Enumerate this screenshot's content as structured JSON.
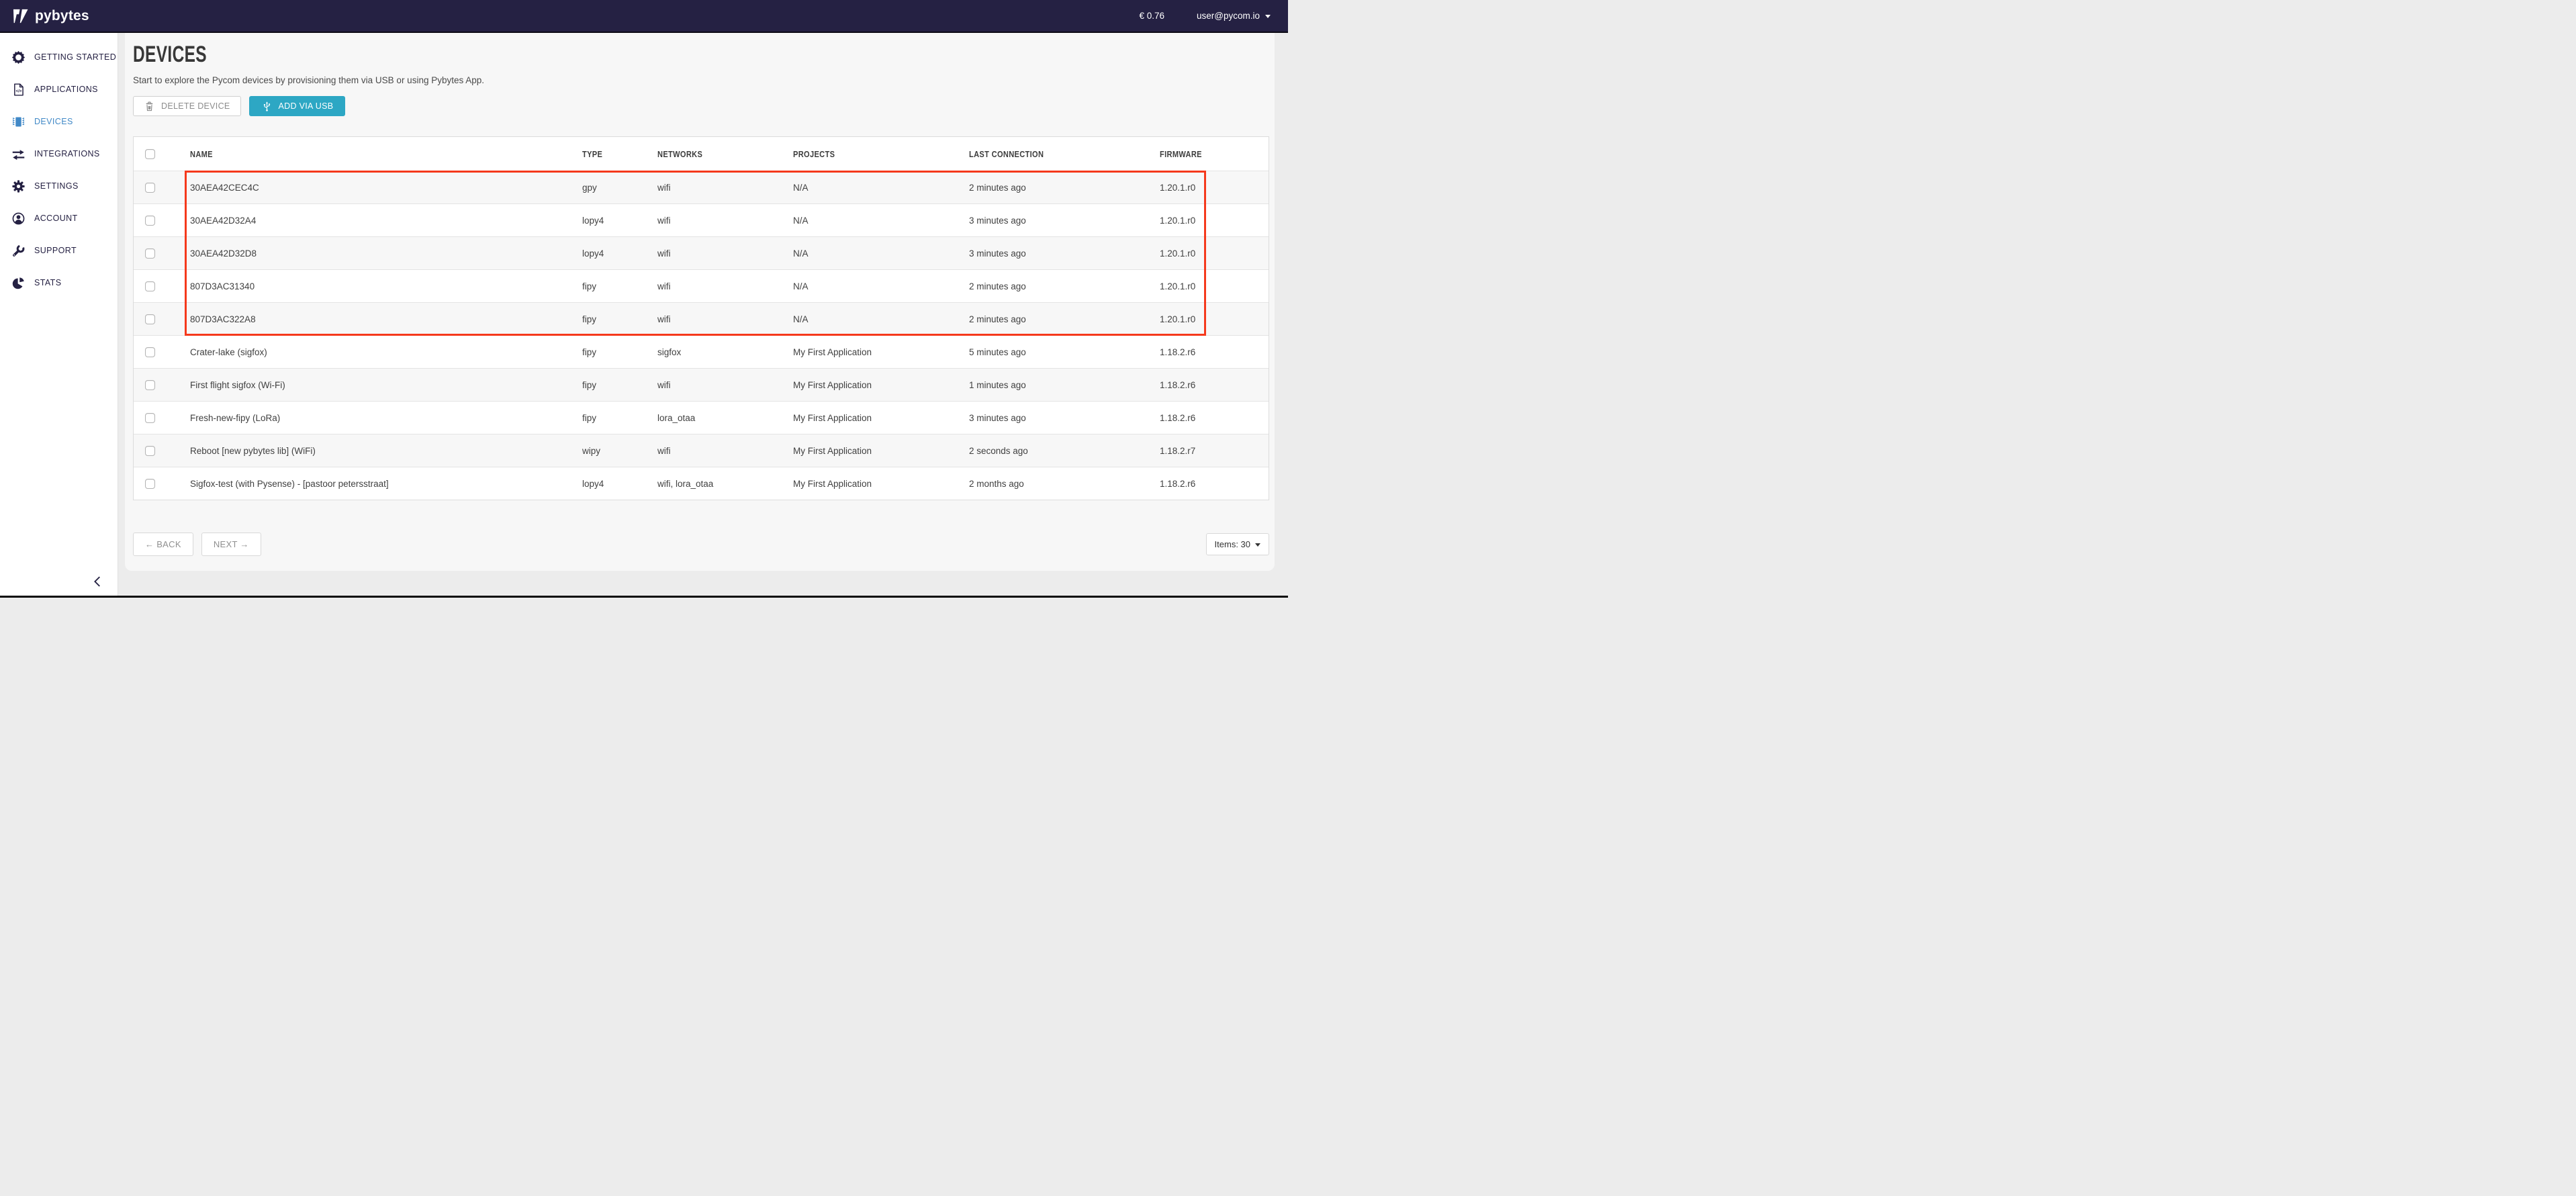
{
  "topbar": {
    "logo_text": "pybytes",
    "balance": "€ 0.76",
    "user_email": "user@pycom.io"
  },
  "sidebar": {
    "items": [
      {
        "id": "getting-started",
        "label": "GETTING STARTED",
        "icon": "seal",
        "active": false
      },
      {
        "id": "applications",
        "label": "APPLICATIONS",
        "icon": "doc",
        "active": false
      },
      {
        "id": "devices",
        "label": "DEVICES",
        "icon": "chip",
        "active": true
      },
      {
        "id": "integrations",
        "label": "INTEGRATIONS",
        "icon": "arrows",
        "active": false
      },
      {
        "id": "settings",
        "label": "SETTINGS",
        "icon": "gear",
        "active": false
      },
      {
        "id": "account",
        "label": "ACCOUNT",
        "icon": "person",
        "active": false
      },
      {
        "id": "support",
        "label": "SUPPORT",
        "icon": "wrench",
        "active": false
      },
      {
        "id": "stats",
        "label": "STATS",
        "icon": "pie",
        "active": false
      }
    ]
  },
  "page": {
    "title": "DEVICES",
    "subtitle": "Start to explore the Pycom devices by provisioning them via USB or using Pybytes App."
  },
  "toolbar": {
    "delete_label": "DELETE DEVICE",
    "add_label": "ADD VIA USB"
  },
  "table": {
    "headers": [
      "NAME",
      "TYPE",
      "NETWORKS",
      "PROJECTS",
      "LAST CONNECTION",
      "FIRMWARE"
    ],
    "rows": [
      {
        "name": "30AEA42CEC4C",
        "type": "gpy",
        "networks": "wifi",
        "projects": "N/A",
        "last_connection": "2 minutes ago",
        "firmware": "1.20.1.r0"
      },
      {
        "name": "30AEA42D32A4",
        "type": "lopy4",
        "networks": "wifi",
        "projects": "N/A",
        "last_connection": "3 minutes ago",
        "firmware": "1.20.1.r0"
      },
      {
        "name": "30AEA42D32D8",
        "type": "lopy4",
        "networks": "wifi",
        "projects": "N/A",
        "last_connection": "3 minutes ago",
        "firmware": "1.20.1.r0"
      },
      {
        "name": "807D3AC31340",
        "type": "fipy",
        "networks": "wifi",
        "projects": "N/A",
        "last_connection": "2 minutes ago",
        "firmware": "1.20.1.r0"
      },
      {
        "name": "807D3AC322A8",
        "type": "fipy",
        "networks": "wifi",
        "projects": "N/A",
        "last_connection": "2 minutes ago",
        "firmware": "1.20.1.r0"
      },
      {
        "name": "Crater-lake (sigfox)",
        "type": "fipy",
        "networks": "sigfox",
        "projects": "My First Application",
        "last_connection": "5 minutes ago",
        "firmware": "1.18.2.r6"
      },
      {
        "name": "First flight sigfox (Wi-Fi)",
        "type": "fipy",
        "networks": "wifi",
        "projects": "My First Application",
        "last_connection": "1 minutes ago",
        "firmware": "1.18.2.r6"
      },
      {
        "name": "Fresh-new-fipy (LoRa)",
        "type": "fipy",
        "networks": "lora_otaa",
        "projects": "My First Application",
        "last_connection": "3 minutes ago",
        "firmware": "1.18.2.r6"
      },
      {
        "name": "Reboot [new pybytes lib] (WiFi)",
        "type": "wipy",
        "networks": "wifi",
        "projects": "My First Application",
        "last_connection": "2 seconds ago",
        "firmware": "1.18.2.r7"
      },
      {
        "name": "Sigfox-test (with Pysense) - [pastoor petersstraat]",
        "type": "lopy4",
        "networks": "wifi, lora_otaa",
        "projects": "My First Application",
        "last_connection": "2 months ago",
        "firmware": "1.18.2.r6"
      }
    ],
    "highlight": {
      "row_start": 1,
      "row_end": 5,
      "row_count": 5,
      "color": "#f5391c"
    }
  },
  "pagination": {
    "back_label": "← BACK",
    "next_label": "NEXT →",
    "items_label": "Items: 30"
  }
}
